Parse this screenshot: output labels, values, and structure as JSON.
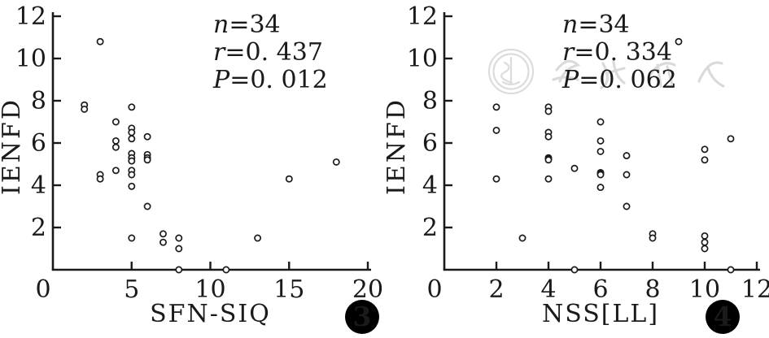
{
  "figure": {
    "background": "#ffffff",
    "ink_color": "#1a1a1a",
    "watermark": {
      "text": "中华医学会",
      "color": "#d9d9d9"
    }
  },
  "chart_data": [
    {
      "type": "scatter",
      "figure_number": "3",
      "title": "",
      "xlabel": "SFN-SIQ",
      "ylabel": "IENFD",
      "xlim": [
        0,
        20
      ],
      "ylim": [
        0,
        12
      ],
      "xticks": [
        0,
        5,
        10,
        15,
        20
      ],
      "yticks": [
        2,
        4,
        6,
        8,
        10,
        12
      ],
      "grid": false,
      "legend": "none",
      "marker": "open-circle",
      "annotations": [
        {
          "var": "n",
          "rest": "=34"
        },
        {
          "var": "r",
          "rest": "=0. 437"
        },
        {
          "var": "P",
          "rest": "=0. 012"
        }
      ],
      "points": [
        [
          3,
          10.8
        ],
        [
          2,
          7.8
        ],
        [
          2,
          7.6
        ],
        [
          5,
          7.7
        ],
        [
          4,
          7.0
        ],
        [
          5,
          6.7
        ],
        [
          5,
          6.5
        ],
        [
          5,
          6.2
        ],
        [
          6,
          6.3
        ],
        [
          4,
          6.1
        ],
        [
          4,
          5.8
        ],
        [
          5,
          5.5
        ],
        [
          5,
          5.3
        ],
        [
          5,
          5.15
        ],
        [
          6,
          5.45
        ],
        [
          6,
          5.3
        ],
        [
          6,
          5.2
        ],
        [
          5,
          4.7
        ],
        [
          5,
          4.5
        ],
        [
          4,
          4.7
        ],
        [
          3,
          4.5
        ],
        [
          3,
          4.3
        ],
        [
          5,
          3.95
        ],
        [
          6,
          3.0
        ],
        [
          5,
          1.5
        ],
        [
          7,
          1.7
        ],
        [
          7,
          1.3
        ],
        [
          8,
          1.5
        ],
        [
          8,
          1.0
        ],
        [
          13,
          1.5
        ],
        [
          15,
          4.3
        ],
        [
          18,
          5.1
        ],
        [
          8,
          0
        ],
        [
          11,
          0
        ]
      ]
    },
    {
      "type": "scatter",
      "figure_number": "4",
      "title": "",
      "xlabel": "NSS[LL]",
      "ylabel": "IENFD",
      "xlim": [
        0,
        12
      ],
      "ylim": [
        0,
        12
      ],
      "xticks": [
        0,
        2,
        4,
        6,
        8,
        10,
        12
      ],
      "yticks": [
        2,
        4,
        6,
        8,
        10,
        12
      ],
      "grid": false,
      "legend": "none",
      "marker": "open-circle",
      "has_watermark": true,
      "annotations": [
        {
          "var": "n",
          "rest": "=34"
        },
        {
          "var": "r",
          "rest": "=0. 334"
        },
        {
          "var": "P",
          "rest": "=0. 062"
        }
      ],
      "points": [
        [
          9,
          10.8
        ],
        [
          2,
          7.7
        ],
        [
          2,
          6.6
        ],
        [
          2,
          4.3
        ],
        [
          4,
          7.7
        ],
        [
          4,
          7.5
        ],
        [
          4,
          6.5
        ],
        [
          4,
          6.3
        ],
        [
          4,
          5.3
        ],
        [
          4,
          5.25
        ],
        [
          4,
          5.2
        ],
        [
          4,
          4.3
        ],
        [
          5,
          4.8
        ],
        [
          5,
          0
        ],
        [
          6,
          7.0
        ],
        [
          6,
          6.1
        ],
        [
          6,
          5.6
        ],
        [
          6,
          4.6
        ],
        [
          6,
          4.55
        ],
        [
          6,
          4.5
        ],
        [
          6,
          3.9
        ],
        [
          7,
          5.4
        ],
        [
          7,
          4.5
        ],
        [
          7,
          3.0
        ],
        [
          3,
          1.5
        ],
        [
          8,
          1.7
        ],
        [
          8,
          1.5
        ],
        [
          10,
          5.7
        ],
        [
          10,
          5.2
        ],
        [
          10,
          1.6
        ],
        [
          10,
          1.3
        ],
        [
          10,
          1.0
        ],
        [
          11,
          6.2
        ],
        [
          11,
          0
        ]
      ]
    }
  ]
}
